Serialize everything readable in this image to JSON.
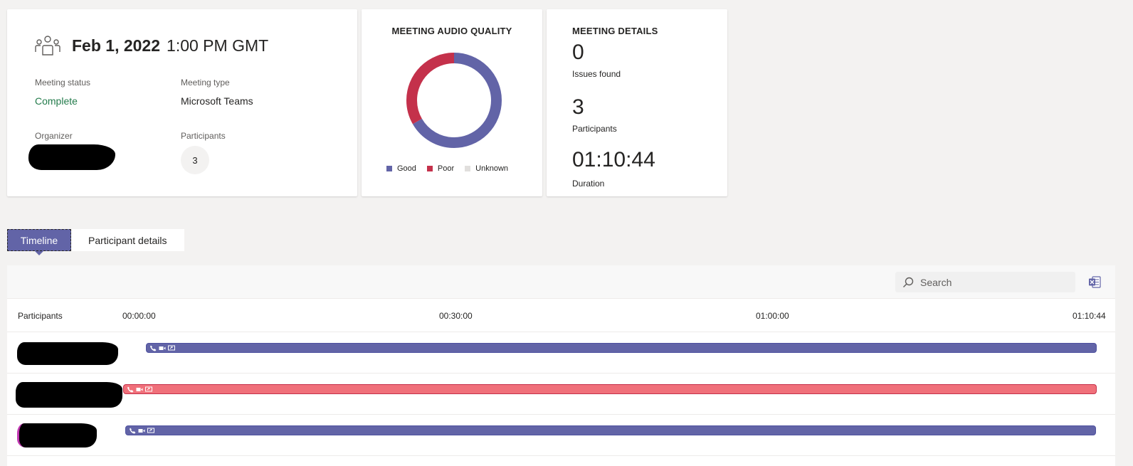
{
  "summary": {
    "date": "Feb 1, 2022",
    "time": "1:00 PM GMT",
    "status_label": "Meeting status",
    "status_value": "Complete",
    "type_label": "Meeting type",
    "type_value": "Microsoft Teams",
    "organizer_label": "Organizer",
    "participants_label": "Participants",
    "participants_count": "3"
  },
  "audio_quality": {
    "title": "MEETING AUDIO QUALITY",
    "legend": [
      {
        "label": "Good",
        "color": "#6264a7"
      },
      {
        "label": "Poor",
        "color": "#c4314b"
      },
      {
        "label": "Unknown",
        "color": "#e1dfdd"
      }
    ],
    "chart_data": {
      "type": "pie",
      "categories": [
        "Good",
        "Poor",
        "Unknown"
      ],
      "values": [
        2,
        1,
        0
      ]
    }
  },
  "details": {
    "title": "MEETING DETAILS",
    "issues_value": "0",
    "issues_label": "Issues found",
    "participants_value": "3",
    "participants_label": "Participants",
    "duration_value": "01:10:44",
    "duration_label": "Duration"
  },
  "tabs": [
    {
      "label": "Timeline",
      "active": true
    },
    {
      "label": "Participant details",
      "active": false
    }
  ],
  "timeline": {
    "search_placeholder": "Search",
    "column_participants": "Participants",
    "ticks": [
      "00:00:00",
      "00:30:00",
      "01:00:00",
      "01:10:44"
    ],
    "rows": [
      {
        "quality": "good",
        "color": "#6264a7"
      },
      {
        "quality": "poor",
        "color": "#f0707a"
      },
      {
        "quality": "good",
        "color": "#6264a7"
      }
    ]
  }
}
